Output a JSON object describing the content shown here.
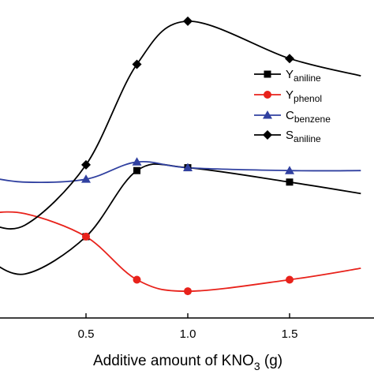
{
  "chart_data": {
    "type": "line",
    "xlabel": "Additive amount of KNO",
    "xlabel_sub": "3",
    "xlabel_unit": " (g)",
    "xlim": [
      0,
      1.85
    ],
    "x_ticks": [
      {
        "value": 0.5,
        "label": "0.5"
      },
      {
        "value": 1.0,
        "label": "1.0"
      },
      {
        "value": 1.5,
        "label": "1.5"
      }
    ],
    "ylim": [
      0,
      100
    ],
    "grid": false,
    "legend_position": "right",
    "series": [
      {
        "name": "Y",
        "name_sub": "aniline",
        "color": "#000000",
        "marker": "square",
        "x": [
          0.5,
          0.75,
          1.0,
          1.5
        ],
        "y": [
          22,
          45,
          46,
          41
        ],
        "curve_x": [
          0,
          0.2,
          0.5,
          0.75,
          1.0,
          1.5,
          1.85
        ],
        "curve_y": [
          15,
          9,
          22,
          45,
          46,
          41,
          37
        ]
      },
      {
        "name": "Y",
        "name_sub": "phenol",
        "color": "#e8221b",
        "marker": "circle",
        "x": [
          0.5,
          0.75,
          1.0,
          1.5
        ],
        "y": [
          22,
          7,
          3,
          7
        ],
        "curve_x": [
          0,
          0.2,
          0.5,
          0.75,
          1.0,
          1.5,
          1.85
        ],
        "curve_y": [
          30,
          30,
          22,
          7,
          3,
          7,
          11
        ]
      },
      {
        "name": "C",
        "name_sub": "benzene",
        "color": "#3040a0",
        "marker": "triangle",
        "x": [
          0.5,
          0.75,
          1.0,
          1.5
        ],
        "y": [
          42,
          48,
          46,
          45
        ],
        "curve_x": [
          0,
          0.2,
          0.5,
          0.75,
          1.0,
          1.5,
          1.85
        ],
        "curve_y": [
          43,
          41,
          42,
          48,
          46,
          45,
          45
        ]
      },
      {
        "name": "S",
        "name_sub": "aniline",
        "color": "#000000",
        "marker": "diamond",
        "x": [
          0.5,
          0.75,
          1.0,
          1.5
        ],
        "y": [
          47,
          82,
          97,
          84
        ],
        "curve_x": [
          0,
          0.2,
          0.5,
          0.75,
          1.0,
          1.5,
          1.85
        ],
        "curve_y": [
          27,
          26,
          47,
          82,
          97,
          84,
          78
        ]
      }
    ]
  }
}
